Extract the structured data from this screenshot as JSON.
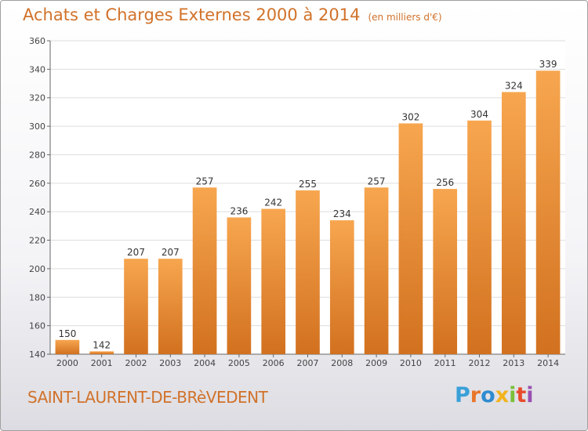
{
  "header": {
    "title": "Achats et Charges Externes 2000 à 2014",
    "unit": "(en milliers d'€)"
  },
  "footer": {
    "commune": "SAINT-LAURENT-DE-BRèVEDENT",
    "brand": "Proxiti"
  },
  "colors": {
    "accent": "#d1722a",
    "bar_light": "#f7a34e",
    "bar_dark": "#d0711e",
    "logo_letters": [
      "#3aa0d8",
      "#e8762b",
      "#2e8bd0",
      "#f2b31c",
      "#7bbf3a",
      "#e84b2b",
      "#9b4fb0"
    ]
  },
  "chart_data": {
    "type": "bar",
    "title": "Achats et Charges Externes 2000 à 2014",
    "categories": [
      "2000",
      "2001",
      "2002",
      "2003",
      "2004",
      "2005",
      "2006",
      "2007",
      "2008",
      "2009",
      "2010",
      "2011",
      "2012",
      "2013",
      "2014"
    ],
    "values": [
      150,
      142,
      207,
      207,
      257,
      236,
      242,
      255,
      234,
      257,
      302,
      256,
      304,
      324,
      339
    ],
    "ylim": [
      140,
      360
    ],
    "yticks": [
      140,
      160,
      180,
      200,
      220,
      240,
      260,
      280,
      300,
      320,
      340,
      360
    ],
    "grid": true,
    "data_labels": true
  }
}
